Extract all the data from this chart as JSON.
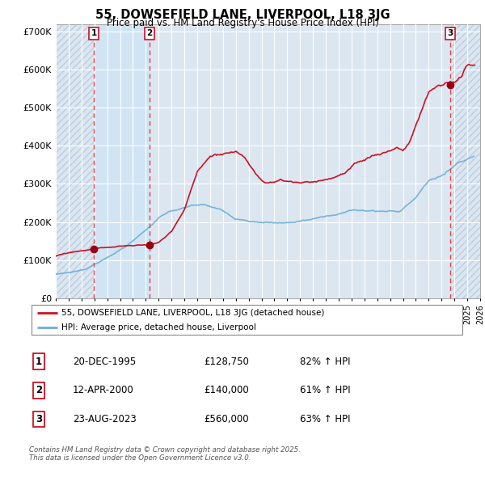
{
  "title": "55, DOWSEFIELD LANE, LIVERPOOL, L18 3JG",
  "subtitle": "Price paid vs. HM Land Registry's House Price Index (HPI)",
  "ylim": [
    0,
    720000
  ],
  "yticks": [
    0,
    100000,
    200000,
    300000,
    400000,
    500000,
    600000,
    700000
  ],
  "ytick_labels": [
    "£0",
    "£100K",
    "£200K",
    "£300K",
    "£400K",
    "£500K",
    "£600K",
    "£700K"
  ],
  "background_color": "#ffffff",
  "plot_bg_color": "#dce6f1",
  "plot_bg_light": "#e8f0f8",
  "grid_color": "#ffffff",
  "hpi_color": "#6baed6",
  "price_color": "#cc1122",
  "sale_marker_color": "#990011",
  "transaction_dline_color": "#dd4444",
  "purchase1_date": 1995.97,
  "purchase2_date": 2000.28,
  "purchase3_date": 2023.65,
  "purchase1_price": 128750,
  "purchase2_price": 140000,
  "purchase3_price": 560000,
  "table_rows": [
    {
      "num": "1",
      "date": "20-DEC-1995",
      "price": "£128,750",
      "hpi": "82% ↑ HPI"
    },
    {
      "num": "2",
      "date": "12-APR-2000",
      "price": "£140,000",
      "hpi": "61% ↑ HPI"
    },
    {
      "num": "3",
      "date": "23-AUG-2023",
      "price": "£560,000",
      "hpi": "63% ↑ HPI"
    }
  ],
  "footer": "Contains HM Land Registry data © Crown copyright and database right 2025.\nThis data is licensed under the Open Government Licence v3.0.",
  "legend_line1": "55, DOWSEFIELD LANE, LIVERPOOL, L18 3JG (detached house)",
  "legend_line2": "HPI: Average price, detached house, Liverpool"
}
